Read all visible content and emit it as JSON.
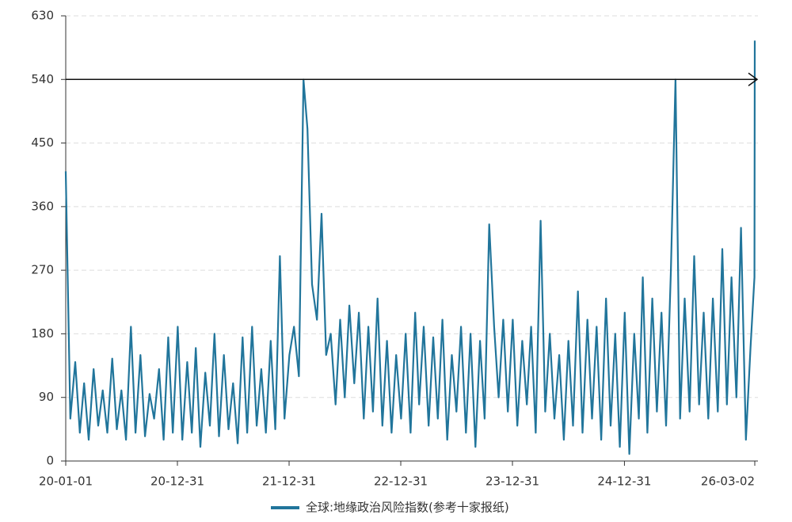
{
  "chart_data": {
    "type": "line",
    "legend": "bottom",
    "grid": true,
    "reference_line": 540,
    "ylim": [
      0,
      630
    ],
    "yticks": [
      0,
      90,
      180,
      270,
      360,
      450,
      540,
      630
    ],
    "xlim": [
      "20-01-01",
      "26-03-02"
    ],
    "xticks": [
      "20-01-01",
      "20-12-31",
      "21-12-31",
      "22-12-31",
      "23-12-31",
      "24-12-31",
      "26-03-02"
    ],
    "x": [
      "20-01-01",
      "20-01-16",
      "20-02-01",
      "20-02-16",
      "20-03-01",
      "20-03-16",
      "20-04-01",
      "20-04-16",
      "20-05-01",
      "20-05-16",
      "20-06-01",
      "20-06-16",
      "20-07-01",
      "20-07-16",
      "20-08-01",
      "20-08-16",
      "20-09-01",
      "20-09-16",
      "20-10-01",
      "20-10-16",
      "20-11-01",
      "20-11-16",
      "20-12-01",
      "20-12-16",
      "21-01-01",
      "21-01-16",
      "21-02-01",
      "21-02-16",
      "21-03-01",
      "21-03-16",
      "21-04-01",
      "21-04-16",
      "21-05-01",
      "21-05-16",
      "21-06-01",
      "21-06-16",
      "21-07-01",
      "21-07-16",
      "21-08-01",
      "21-08-16",
      "21-09-01",
      "21-09-16",
      "21-10-01",
      "21-10-16",
      "21-11-01",
      "21-11-16",
      "21-12-01",
      "21-12-16",
      "22-01-01",
      "22-01-16",
      "22-02-01",
      "22-02-16",
      "22-03-01",
      "22-03-16",
      "22-04-01",
      "22-04-16",
      "22-05-01",
      "22-05-16",
      "22-06-01",
      "22-06-16",
      "22-07-01",
      "22-07-16",
      "22-08-01",
      "22-08-16",
      "22-09-01",
      "22-09-16",
      "22-10-01",
      "22-10-16",
      "22-11-01",
      "22-11-16",
      "22-12-01",
      "22-12-16",
      "23-01-01",
      "23-01-16",
      "23-02-01",
      "23-02-16",
      "23-03-01",
      "23-03-16",
      "23-04-01",
      "23-04-16",
      "23-05-01",
      "23-05-16",
      "23-06-01",
      "23-06-16",
      "23-07-01",
      "23-07-16",
      "23-08-01",
      "23-08-16",
      "23-09-01",
      "23-09-16",
      "23-10-01",
      "23-10-16",
      "23-11-01",
      "23-11-16",
      "23-12-01",
      "23-12-16",
      "24-01-01",
      "24-01-16",
      "24-02-01",
      "24-02-16",
      "24-03-01",
      "24-03-16",
      "24-04-01",
      "24-04-16",
      "24-05-01",
      "24-05-16",
      "24-06-01",
      "24-06-16",
      "24-07-01",
      "24-07-16",
      "24-08-01",
      "24-08-16",
      "24-09-01",
      "24-09-16",
      "24-10-01",
      "24-10-16",
      "24-11-01",
      "24-11-16",
      "24-12-01",
      "24-12-16",
      "25-01-01",
      "25-01-16",
      "25-02-01",
      "25-02-16",
      "25-03-01",
      "25-03-16",
      "25-04-01",
      "25-04-16",
      "25-05-01",
      "25-05-16",
      "25-06-01",
      "25-06-16",
      "25-07-01",
      "25-07-16",
      "25-08-01",
      "25-08-16",
      "25-09-01",
      "25-09-16",
      "25-10-01",
      "25-10-16",
      "25-11-01",
      "25-11-16",
      "25-12-01",
      "25-12-16",
      "26-01-01",
      "26-01-16",
      "26-02-01",
      "26-02-16",
      "26-03-01",
      "26-03-02"
    ],
    "series": [
      {
        "name": "全球:地缘政治风险指数(参考十家报纸)",
        "color": "#21759b",
        "values": [
          410,
          60,
          140,
          40,
          110,
          30,
          130,
          50,
          100,
          40,
          145,
          45,
          100,
          30,
          190,
          40,
          150,
          35,
          95,
          60,
          130,
          30,
          175,
          40,
          190,
          30,
          140,
          40,
          160,
          20,
          125,
          50,
          180,
          35,
          150,
          45,
          110,
          25,
          175,
          40,
          190,
          50,
          130,
          40,
          170,
          45,
          290,
          60,
          150,
          190,
          120,
          540,
          470,
          250,
          200,
          350,
          150,
          180,
          80,
          200,
          90,
          220,
          110,
          210,
          60,
          190,
          70,
          230,
          50,
          170,
          40,
          150,
          60,
          180,
          40,
          210,
          80,
          190,
          50,
          175,
          60,
          200,
          30,
          150,
          70,
          190,
          40,
          180,
          20,
          170,
          60,
          335,
          190,
          90,
          200,
          70,
          200,
          50,
          170,
          80,
          190,
          40,
          340,
          70,
          180,
          60,
          150,
          30,
          170,
          50,
          240,
          40,
          200,
          60,
          190,
          30,
          230,
          50,
          180,
          20,
          210,
          10,
          180,
          60,
          260,
          40,
          230,
          70,
          210,
          50,
          270,
          540,
          60,
          230,
          70,
          290,
          80,
          210,
          60,
          230,
          70,
          300,
          80,
          260,
          90,
          330,
          30,
          160,
          260,
          595
        ]
      }
    ]
  }
}
